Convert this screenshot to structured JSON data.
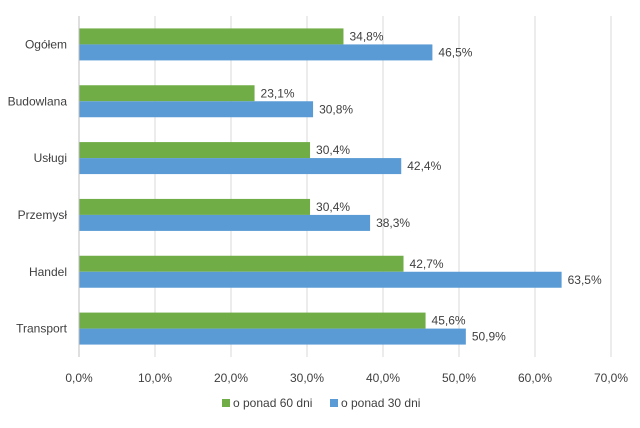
{
  "chart_data": {
    "type": "bar",
    "orientation": "horizontal",
    "categories": [
      "Ogółem",
      "Budowlana",
      "Usługi",
      "Przemysł",
      "Handel",
      "Transport"
    ],
    "series": [
      {
        "name": "o ponad 60 dni",
        "color": "#70ad47",
        "values": [
          34.8,
          23.1,
          30.4,
          30.4,
          42.7,
          45.6
        ],
        "labels": [
          "34,8%",
          "23,1%",
          "30,4%",
          "30,4%",
          "42,7%",
          "45,6%"
        ]
      },
      {
        "name": "o ponad 30 dni",
        "color": "#5b9bd5",
        "values": [
          46.5,
          30.8,
          42.4,
          38.3,
          63.5,
          50.9
        ],
        "labels": [
          "46,5%",
          "30,8%",
          "42,4%",
          "38,3%",
          "63,5%",
          "50,9%"
        ]
      }
    ],
    "xlim": [
      0,
      70
    ],
    "x_ticks": [
      "0,0%",
      "10,0%",
      "20,0%",
      "30,0%",
      "40,0%",
      "50,0%",
      "60,0%",
      "70,0%"
    ],
    "grid": true,
    "legend_position": "bottom",
    "title": "",
    "xlabel": "",
    "ylabel": ""
  }
}
